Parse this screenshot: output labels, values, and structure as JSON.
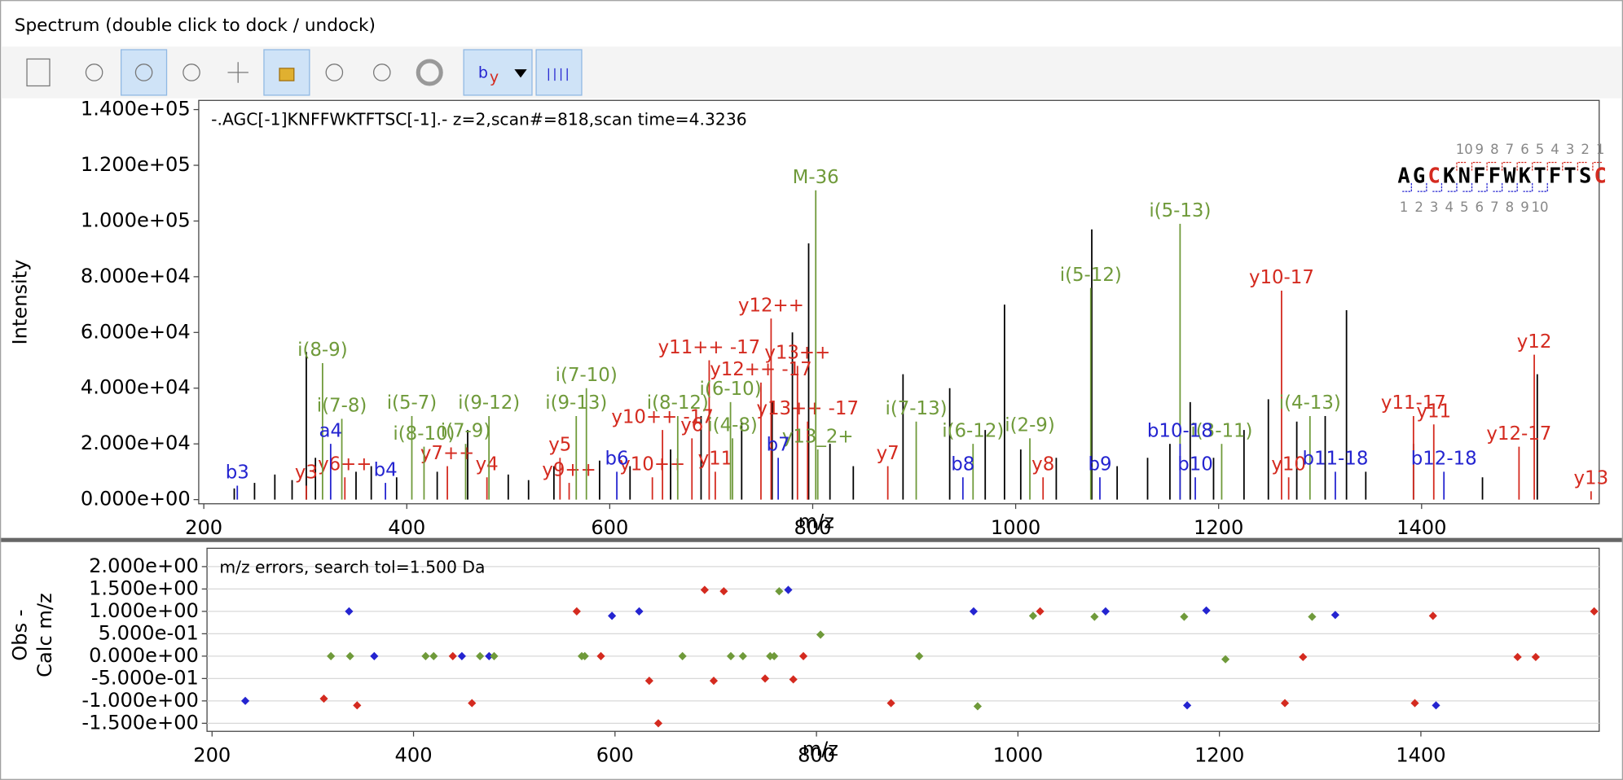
{
  "window": {
    "title": "Spectrum (double click to dock / undock)"
  },
  "toolbar": {
    "ion_button": [
      "b",
      "y"
    ]
  },
  "fragment_map": {
    "residues": [
      {
        "letter": "A",
        "color": "#000000"
      },
      {
        "letter": "G",
        "color": "#000000"
      },
      {
        "letter": "C",
        "color": "#d42a1f"
      },
      {
        "letter": "K",
        "color": "#000000"
      },
      {
        "letter": "N",
        "color": "#000000"
      },
      {
        "letter": "F",
        "color": "#000000"
      },
      {
        "letter": "F",
        "color": "#000000"
      },
      {
        "letter": "W",
        "color": "#000000"
      },
      {
        "letter": "K",
        "color": "#000000"
      },
      {
        "letter": "T",
        "color": "#000000"
      },
      {
        "letter": "F",
        "color": "#000000"
      },
      {
        "letter": "T",
        "color": "#000000"
      },
      {
        "letter": "S",
        "color": "#000000"
      },
      {
        "letter": "C",
        "color": "#d42a1f"
      }
    ],
    "y_numbers": [
      10,
      9,
      8,
      7,
      6,
      5,
      4,
      3,
      2,
      1
    ],
    "b_numbers": [
      1,
      2,
      3,
      4,
      5,
      6,
      7,
      8,
      9,
      10
    ]
  },
  "chart_data": [
    {
      "type": "stick",
      "title": "-.AGC[-1]KNFFWKTFTSC[-1].- z=2,scan#=818,scan time=4.3236",
      "xlabel": "m/z",
      "ylabel": "Intensity",
      "xlim": [
        195,
        1575
      ],
      "ylim": [
        -1500,
        143300
      ],
      "xticks": [
        200,
        400,
        600,
        800,
        1000,
        1200,
        1400
      ],
      "yticks": [
        {
          "value": 0,
          "label": "0.000e+00"
        },
        {
          "value": 20000,
          "label": "2.000e+04"
        },
        {
          "value": 40000,
          "label": "4.000e+04"
        },
        {
          "value": 60000,
          "label": "6.000e+04"
        },
        {
          "value": 80000,
          "label": "8.000e+04"
        },
        {
          "value": 100000,
          "label": "1.000e+05"
        },
        {
          "value": 120000,
          "label": "1.200e+05"
        },
        {
          "value": 140000,
          "label": "1.400e+05"
        }
      ],
      "grid": false,
      "series": [
        {
          "color": "#000000",
          "x": [
            230,
            250,
            270,
            287,
            301,
            310,
            350,
            365,
            390,
            430,
            460,
            500,
            520,
            545,
            590,
            620,
            660,
            690,
            730,
            760,
            780,
            796,
            817,
            840,
            889,
            935,
            970,
            989,
            1005,
            1040,
            1075,
            1100,
            1130,
            1152,
            1172,
            1195,
            1225,
            1249,
            1277,
            1305,
            1326,
            1345,
            1392,
            1460,
            1514
          ],
          "values": [
            4000,
            6000,
            9000,
            7000,
            53000,
            15000,
            10000,
            12000,
            8000,
            10000,
            25000,
            9000,
            7000,
            12000,
            14000,
            12000,
            18000,
            30000,
            28000,
            35000,
            60000,
            92000,
            20000,
            12000,
            45000,
            40000,
            25000,
            70000,
            18000,
            15000,
            97000,
            12000,
            15000,
            20000,
            35000,
            15000,
            25000,
            36000,
            28000,
            30000,
            68000,
            10000,
            20000,
            8000,
            45000
          ]
        },
        {
          "color": "#d42a1f",
          "x": [
            301,
            339,
            440,
            479,
            551,
            560,
            642,
            652,
            681,
            698,
            704,
            749,
            759,
            785,
            795,
            874,
            1027,
            1262,
            1269,
            1392,
            1412,
            1496,
            1511,
            1567
          ],
          "values": [
            5000,
            8000,
            12000,
            8000,
            15000,
            6000,
            8000,
            25000,
            22000,
            50000,
            10000,
            42000,
            65000,
            48000,
            28000,
            12000,
            8000,
            75000,
            8000,
            30000,
            27000,
            19000,
            52000,
            3000
          ],
          "labels": [
            "y3",
            "y6++",
            "y7++",
            "y4",
            "y5",
            "y9++",
            "y10++",
            "y10++ -17",
            "y6",
            "y11++ -17",
            "y11",
            "y12++ -17",
            "y12++",
            "y13++",
            "y13++ -17",
            "y7",
            "y8",
            "y10-17",
            "y10",
            "y11-17",
            "y11",
            "y12-17",
            "y12",
            "y13"
          ]
        },
        {
          "color": "#6f9a3a",
          "x": [
            317,
            336,
            405,
            417,
            458,
            481,
            567,
            577,
            667,
            719,
            721,
            805,
            803,
            902,
            958,
            1014,
            1074,
            1162,
            1203,
            1290
          ],
          "values": [
            49000,
            29000,
            30000,
            19000,
            20000,
            30000,
            30000,
            40000,
            30000,
            35000,
            22000,
            18000,
            111000,
            28000,
            20000,
            22000,
            76000,
            99000,
            20000,
            30000
          ],
          "labels": [
            "i(8-9)",
            "i(7-8)",
            "i(5-7)",
            "i(8-10)",
            "i(7-9)",
            "i(9-12)",
            "i(9-13)",
            "i(7-10)",
            "i(8-12)",
            "i(6-10)",
            "i(4-8)",
            "y13_2+",
            "M-36",
            "i(7-13)",
            "i(6-12)",
            "i(2-9)",
            "i(5-12)",
            "i(5-13)",
            "i(3-11)",
            "i(4-13)"
          ]
        },
        {
          "color": "#2424d0",
          "x": [
            233,
            325,
            379,
            607,
            766,
            948,
            1083,
            1162,
            1177,
            1315,
            1422
          ],
          "values": [
            5000,
            20000,
            6000,
            10000,
            15000,
            8000,
            8000,
            20000,
            8000,
            10000,
            10000
          ],
          "labels": [
            "b3",
            "a4",
            "b4",
            "b6",
            "b7",
            "b8",
            "b9",
            "b10-18",
            "b10",
            "b11-18",
            "b12-18"
          ]
        }
      ]
    },
    {
      "type": "scatter",
      "title": "m/z errors, search tol=1.500 Da",
      "xlabel": "m/z",
      "ylabel": [
        "Obs -",
        "Calc m/z"
      ],
      "xlim": [
        195,
        1577
      ],
      "ylim": [
        -1.68,
        2.41
      ],
      "xticks": [
        200,
        400,
        600,
        800,
        1000,
        1200,
        1400
      ],
      "yticks": [
        {
          "value": 2,
          "label": "2.000e+00"
        },
        {
          "value": 1.5,
          "label": "1.500e+00"
        },
        {
          "value": 1,
          "label": "1.000e+00"
        },
        {
          "value": 0.5,
          "label": "5.000e-01"
        },
        {
          "value": 0,
          "label": "0.000e+00"
        },
        {
          "value": -0.5,
          "label": "-5.000e-01"
        },
        {
          "value": -1,
          "label": "-1.000e+00"
        },
        {
          "value": -1.5,
          "label": "-1.500e+00"
        }
      ],
      "grid": true,
      "series": [
        {
          "color": "#2424d0",
          "x": [
            233,
            336,
            361,
            448,
            475,
            597,
            624,
            772,
            956,
            1087,
            1168,
            1187,
            1315,
            1415
          ],
          "values": [
            -1.0,
            1.0,
            0,
            0,
            0,
            0.9,
            1.0,
            1.48,
            1.0,
            1.0,
            -1.1,
            1.02,
            0.92,
            -1.1
          ]
        },
        {
          "color": "#d42a1f",
          "x": [
            311,
            344,
            439,
            458,
            562,
            586,
            634,
            643,
            689,
            698,
            708,
            749,
            777,
            787,
            874,
            1022,
            1265,
            1283,
            1394,
            1412,
            1496,
            1514,
            1572
          ],
          "values": [
            -0.95,
            -1.1,
            0,
            -1.05,
            1.0,
            0,
            -0.55,
            -1.5,
            1.48,
            -0.55,
            1.45,
            -0.5,
            -0.52,
            0,
            -1.05,
            1.0,
            -1.05,
            -0.02,
            -1.05,
            0.9,
            -0.02,
            -0.02,
            1.0
          ]
        },
        {
          "color": "#6f9a3a",
          "x": [
            318,
            337,
            412,
            420,
            466,
            480,
            567,
            570,
            667,
            715,
            727,
            754,
            758,
            763,
            804,
            902,
            960,
            1015,
            1076,
            1165,
            1206,
            1292
          ],
          "values": [
            0,
            0,
            0,
            0,
            0,
            0,
            0,
            0,
            0,
            0,
            0,
            0,
            0,
            1.45,
            0.48,
            0,
            -1.12,
            0.9,
            0.88,
            0.88,
            -0.07,
            0.88
          ]
        }
      ]
    }
  ]
}
